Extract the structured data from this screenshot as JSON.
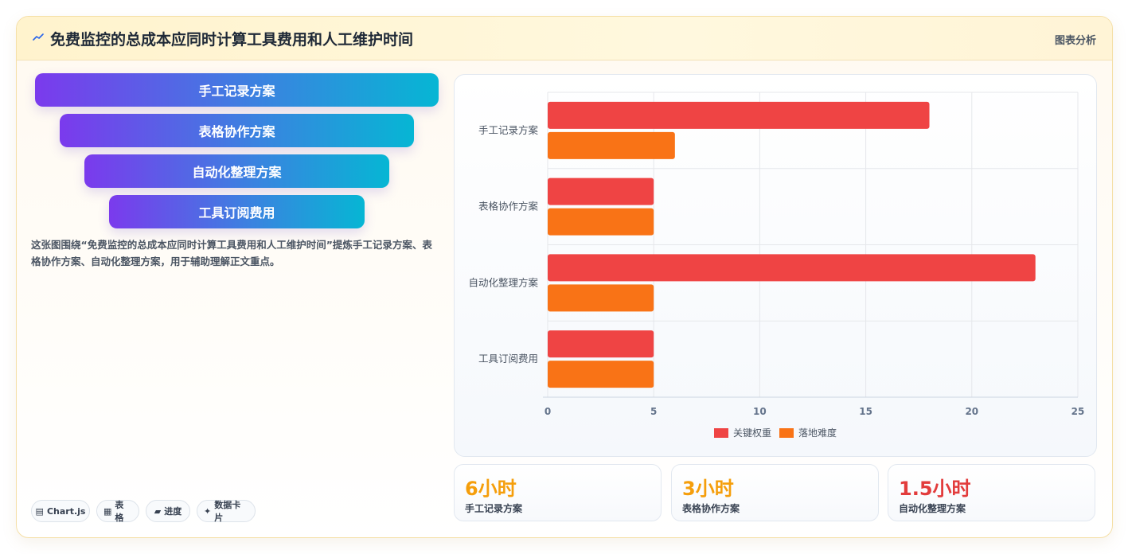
{
  "header": {
    "title": "免费监控的总成本应同时计算工具费用和人工维护时间",
    "link_label": "图表分析",
    "icon": "trend-icon"
  },
  "funnel": {
    "items": [
      "手工记录方案",
      "表格协作方案",
      "自动化整理方案",
      "工具订阅费用"
    ]
  },
  "description": "这张图围绕“免费监控的总成本应同时计算工具费用和人工维护时间”提炼手工记录方案、表格协作方案、自动化整理方案，用于辅助理解正文重点。",
  "chips": [
    {
      "icon": "chart-icon",
      "glyph": "▤",
      "label": "Chart.js"
    },
    {
      "icon": "table-icon",
      "glyph": "▦",
      "label": "表格"
    },
    {
      "icon": "progress-icon",
      "glyph": "▰",
      "label": "进度"
    },
    {
      "icon": "sparkle-icon",
      "glyph": "✦",
      "label": "数据卡片"
    }
  ],
  "stats": [
    {
      "value": "6小时",
      "label": "手工记录方案",
      "color": "#f59e0b"
    },
    {
      "value": "3小时",
      "label": "表格协作方案",
      "color": "#f59e0b"
    },
    {
      "value": "1.5小时",
      "label": "自动化整理方案",
      "color": "#e23c3c"
    }
  ],
  "chart_data": {
    "type": "bar",
    "orientation": "horizontal",
    "categories": [
      "手工记录方案",
      "表格协作方案",
      "自动化整理方案",
      "工具订阅费用"
    ],
    "series": [
      {
        "name": "关键权重",
        "values": [
          18,
          5,
          23,
          5
        ],
        "color": "#ef4444"
      },
      {
        "name": "落地难度",
        "values": [
          6,
          5,
          5,
          5
        ],
        "color": "#f97316"
      }
    ],
    "xlim": [
      0,
      25
    ],
    "xticks": [
      0,
      5,
      10,
      15,
      20,
      25
    ],
    "grid": true,
    "legend_position": "bottom"
  }
}
